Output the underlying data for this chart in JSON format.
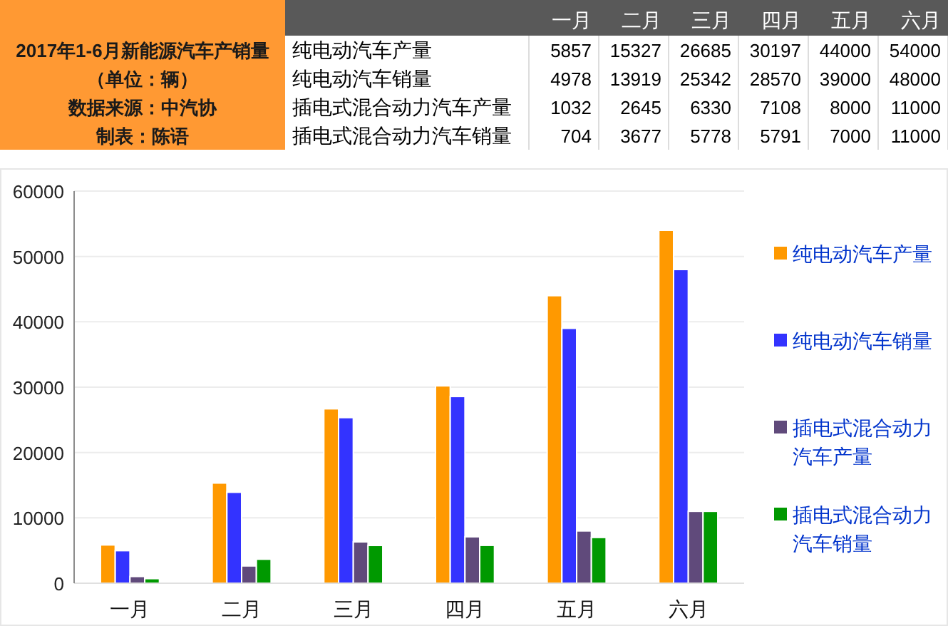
{
  "chart_data": [
    {
      "type": "heatmap",
      "title": "2017年1-6月新能源汽车产销量",
      "subtitle": "（单位：辆）",
      "annotations": [
        "数据来源：中汽协",
        "制表：陈语"
      ],
      "categories": [
        "一月",
        "二月",
        "三月",
        "四月",
        "五月",
        "六月"
      ],
      "y_categories": [
        "纯电动汽车产量",
        "纯电动汽车销量",
        "插电式混合动力汽车产量",
        "插电式混合动力汽车销量"
      ],
      "cells": [
        [
          5857,
          15327,
          26685,
          30197,
          44000,
          54000
        ],
        [
          4978,
          13919,
          25342,
          28570,
          39000,
          48000
        ],
        [
          1032,
          2645,
          6330,
          7108,
          8000,
          11000
        ],
        [
          704,
          3677,
          5778,
          5791,
          7000,
          11000
        ]
      ],
      "data_labels": true
    },
    {
      "type": "bar",
      "categories": [
        "一月",
        "二月",
        "三月",
        "四月",
        "五月",
        "六月"
      ],
      "series": [
        {
          "name": "纯电动汽车产量",
          "color": "#ff9900",
          "values": [
            5857,
            15327,
            26685,
            30197,
            44000,
            54000
          ]
        },
        {
          "name": "纯电动汽车销量",
          "color": "#3333ff",
          "values": [
            4978,
            13919,
            25342,
            28570,
            39000,
            48000
          ]
        },
        {
          "name": "插电式混合动力汽车产量",
          "color": "#604a7b",
          "values": [
            1032,
            2645,
            6330,
            7108,
            8000,
            11000
          ]
        },
        {
          "name": "插电式混合动力汽车销量",
          "color": "#009900",
          "values": [
            704,
            3677,
            5778,
            5791,
            7000,
            11000
          ]
        }
      ],
      "ylim": [
        0,
        60000
      ],
      "yticks": [
        0,
        10000,
        20000,
        30000,
        40000,
        50000,
        60000
      ],
      "grid": "y",
      "legend": "right"
    }
  ]
}
